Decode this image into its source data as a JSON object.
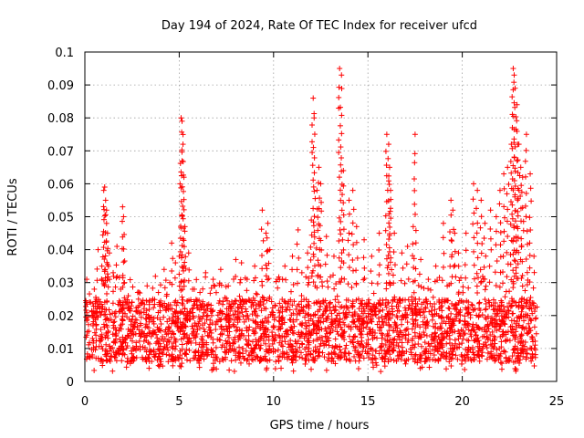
{
  "chart_data": {
    "type": "scatter",
    "title": "Day 194 of 2024, Rate Of TEC Index for receiver ufcd",
    "xlabel": "GPS time / hours",
    "ylabel": "ROTI / TECUs",
    "xlim": [
      0,
      25
    ],
    "ylim": [
      0,
      0.1
    ],
    "xticks": [
      0,
      5,
      10,
      15,
      20,
      25
    ],
    "xtick_labels": [
      "0",
      "5",
      "10",
      "15",
      "20",
      "25"
    ],
    "yticks": [
      0,
      0.01,
      0.02,
      0.03,
      0.04,
      0.05,
      0.06,
      0.07,
      0.08,
      0.09,
      0.1
    ],
    "ytick_labels": [
      "0",
      "0.01",
      "0.02",
      "0.03",
      "0.04",
      "0.05",
      "0.06",
      "0.07",
      "0.08",
      "0.09",
      "0.1"
    ],
    "grid": true,
    "marker": "+",
    "color": "#ff0000",
    "series": [
      {
        "name": "ROTI",
        "x": [
          0.1,
          0.3,
          0.5,
          0.7,
          0.9,
          1.0,
          1.05,
          1.1,
          1.15,
          1.2,
          1.3,
          1.5,
          1.7,
          1.9,
          2.0,
          2.05,
          2.1,
          2.3,
          2.5,
          2.8,
          3.0,
          3.3,
          3.6,
          3.9,
          4.2,
          4.5,
          4.6,
          4.8,
          5.0,
          5.1,
          5.15,
          5.2,
          5.25,
          5.3,
          5.5,
          5.8,
          6.1,
          6.4,
          6.8,
          7.2,
          7.6,
          8.0,
          8.3,
          8.6,
          9.0,
          9.4,
          9.6,
          9.7,
          9.8,
          10.2,
          10.6,
          11.0,
          11.3,
          11.5,
          11.8,
          12.0,
          12.1,
          12.15,
          12.3,
          12.4,
          12.5,
          12.8,
          13.2,
          13.5,
          13.6,
          13.7,
          14.0,
          14.2,
          14.4,
          14.8,
          15.2,
          15.6,
          16.0,
          16.1,
          16.15,
          16.2,
          16.4,
          16.8,
          17.1,
          17.4,
          17.5,
          17.8,
          18.2,
          18.6,
          19.0,
          19.4,
          19.5,
          19.6,
          19.8,
          20.2,
          20.6,
          20.8,
          21.0,
          21.2,
          21.5,
          21.8,
          22.0,
          22.2,
          22.4,
          22.6,
          22.7,
          22.75,
          22.8,
          22.9,
          23.0,
          23.1,
          23.2,
          23.4,
          23.6,
          23.8
        ],
        "y": [
          0.031,
          0.024,
          0.028,
          0.04,
          0.035,
          0.058,
          0.059,
          0.055,
          0.052,
          0.045,
          0.039,
          0.033,
          0.041,
          0.028,
          0.053,
          0.05,
          0.03,
          0.026,
          0.024,
          0.027,
          0.021,
          0.029,
          0.025,
          0.027,
          0.034,
          0.03,
          0.042,
          0.036,
          0.038,
          0.08,
          0.079,
          0.072,
          0.062,
          0.047,
          0.039,
          0.028,
          0.027,
          0.033,
          0.031,
          0.034,
          0.029,
          0.037,
          0.036,
          0.031,
          0.035,
          0.052,
          0.045,
          0.048,
          0.04,
          0.031,
          0.035,
          0.038,
          0.046,
          0.033,
          0.039,
          0.049,
          0.086,
          0.08,
          0.058,
          0.065,
          0.06,
          0.044,
          0.038,
          0.095,
          0.093,
          0.064,
          0.055,
          0.058,
          0.047,
          0.043,
          0.038,
          0.045,
          0.075,
          0.072,
          0.065,
          0.058,
          0.045,
          0.039,
          0.041,
          0.047,
          0.075,
          0.037,
          0.031,
          0.035,
          0.048,
          0.055,
          0.052,
          0.045,
          0.039,
          0.045,
          0.06,
          0.058,
          0.055,
          0.048,
          0.052,
          0.05,
          0.058,
          0.063,
          0.065,
          0.072,
          0.095,
          0.093,
          0.089,
          0.084,
          0.072,
          0.065,
          0.062,
          0.075,
          0.063,
          0.038
        ]
      }
    ],
    "background_band": {
      "description_range_y": [
        0.003,
        0.032
      ],
      "typical_range_y": [
        0.006,
        0.025
      ]
    }
  }
}
